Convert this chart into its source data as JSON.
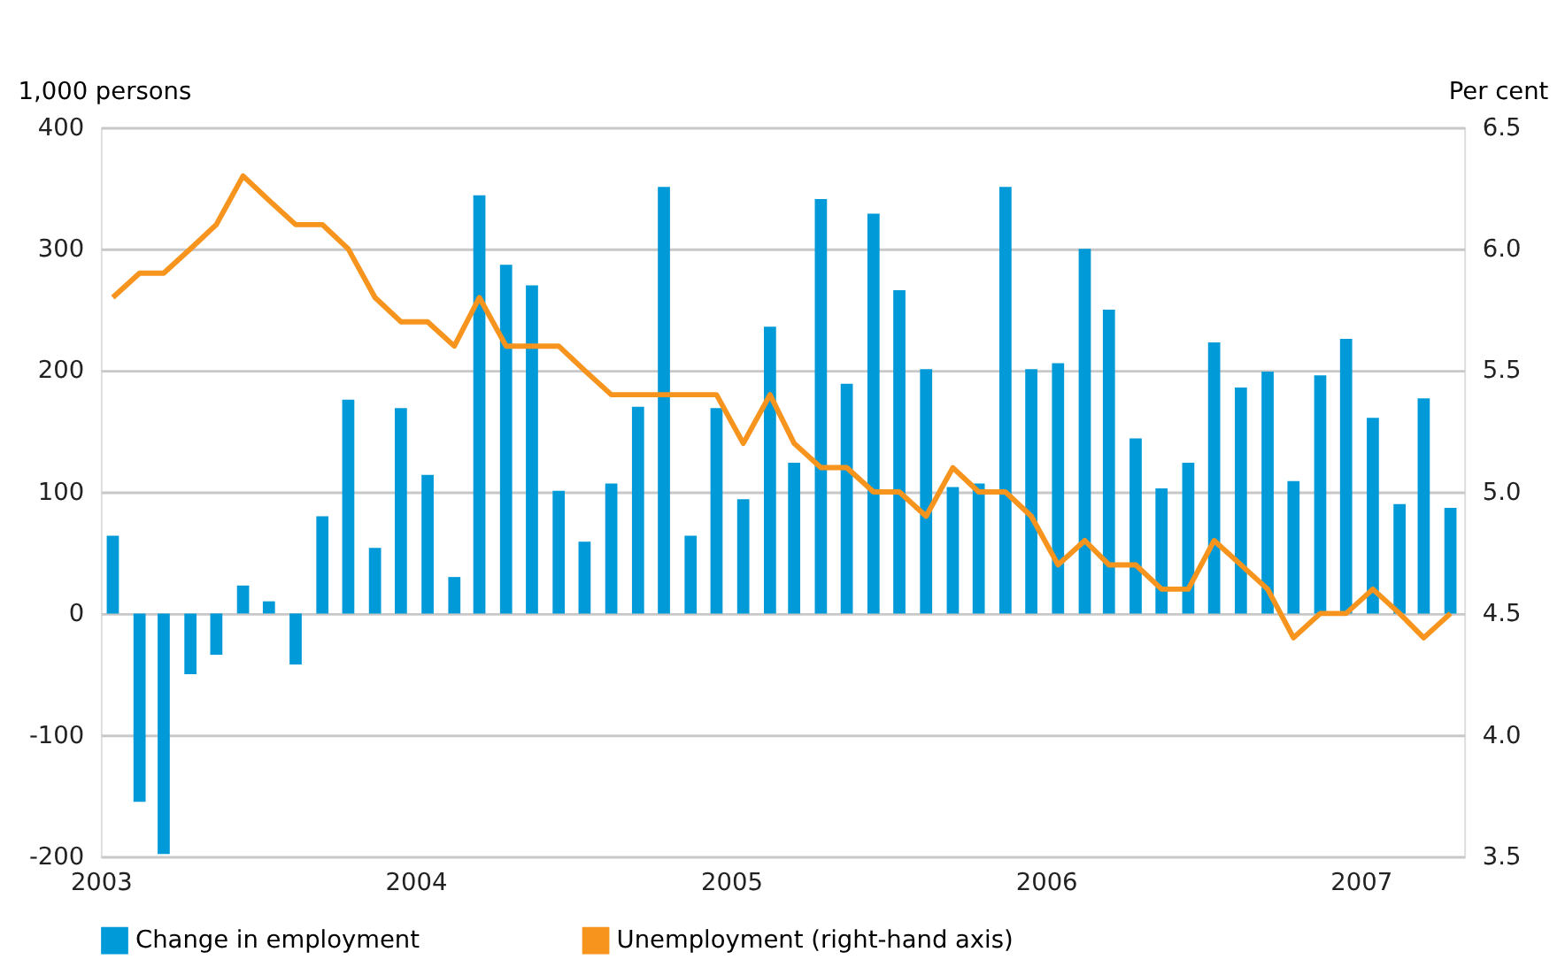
{
  "chart_data": {
    "type": "bar",
    "ylabel": "1,000 persons",
    "y2label": "Per cent",
    "x": [
      "2003-01-15",
      "2003-02-15",
      "2003-03-15",
      "2003-04-15",
      "2003-05-15",
      "2003-06-15",
      "2003-07-15",
      "2003-08-15",
      "2003-09-15",
      "2003-10-15",
      "2003-11-15",
      "2003-12-15",
      "2004-01-15",
      "2004-02-15",
      "2004-03-15",
      "2004-04-15",
      "2004-05-15",
      "2004-06-15",
      "2004-07-15",
      "2004-08-15",
      "2004-09-15",
      "2004-10-15",
      "2004-11-15",
      "2004-12-15",
      "2005-01-15",
      "2005-02-15",
      "2005-03-15",
      "2005-04-15",
      "2005-05-15",
      "2005-06-15",
      "2005-07-15",
      "2005-08-15",
      "2005-09-15",
      "2005-10-15",
      "2005-11-15",
      "2005-12-15",
      "2006-01-15",
      "2006-02-15",
      "2006-03-15",
      "2006-04-15",
      "2006-05-15",
      "2006-06-15",
      "2006-07-15",
      "2006-08-15",
      "2006-09-15",
      "2006-10-15",
      "2006-11-15",
      "2006-12-15",
      "2007-01-15",
      "2007-02-15",
      "2007-03-15",
      "2007-04-15"
    ],
    "series": [
      {
        "name": "Change in employment",
        "color": "#009ad8",
        "values": [
          64,
          -155,
          -198,
          -50,
          -34,
          23,
          10,
          -42,
          80,
          176,
          54,
          169,
          114,
          30,
          344,
          287,
          270,
          101,
          59,
          107,
          170,
          351,
          64,
          169,
          94,
          236,
          124,
          341,
          189,
          329,
          266,
          201,
          104,
          107,
          351,
          201,
          206,
          300,
          250,
          144,
          103,
          124,
          223,
          186,
          199,
          109,
          196,
          226,
          161,
          90,
          177,
          87
        ]
      },
      {
        "name": "Unemployment (right-hand axis)",
        "type": "line",
        "axis": "y2",
        "color": "#f7941d",
        "values": [
          5.8,
          5.9,
          5.9,
          6.0,
          6.1,
          6.3,
          6.2,
          6.1,
          6.1,
          6.0,
          5.8,
          5.7,
          5.7,
          5.6,
          5.8,
          5.6,
          5.6,
          5.6,
          5.5,
          5.4,
          5.4,
          5.4,
          5.4,
          5.4,
          5.2,
          5.4,
          5.2,
          5.1,
          5.1,
          5.0,
          5.0,
          4.9,
          5.1,
          5.0,
          5.0,
          4.9,
          4.7,
          4.8,
          4.7,
          4.7,
          4.6,
          4.6,
          4.8,
          4.7,
          4.6,
          4.4,
          4.5,
          4.5,
          4.6,
          4.5,
          4.4,
          4.5
        ]
      }
    ],
    "xlim": [
      "2003-01",
      "2007-05"
    ],
    "xticks": [
      "2003",
      "2004",
      "2005",
      "2006",
      "2007"
    ],
    "ylim": [
      -200,
      400
    ],
    "yticks": [
      -200,
      -100,
      0,
      100,
      200,
      300,
      400
    ],
    "y2lim": [
      3.5,
      6.5
    ],
    "y2ticks": [
      {
        "value": 3.5,
        "label": "3.5"
      },
      {
        "value": 4.0,
        "label": "4.0"
      },
      {
        "value": 4.5,
        "label": "4.5"
      },
      {
        "value": 5.0,
        "label": "5.0"
      },
      {
        "value": 5.5,
        "label": "5.5"
      },
      {
        "value": 6.0,
        "label": "6.0"
      },
      {
        "value": 6.5,
        "label": "6.5"
      }
    ],
    "grid": "y",
    "legend": "bottom",
    "line_style": "solid",
    "marker": "none"
  }
}
